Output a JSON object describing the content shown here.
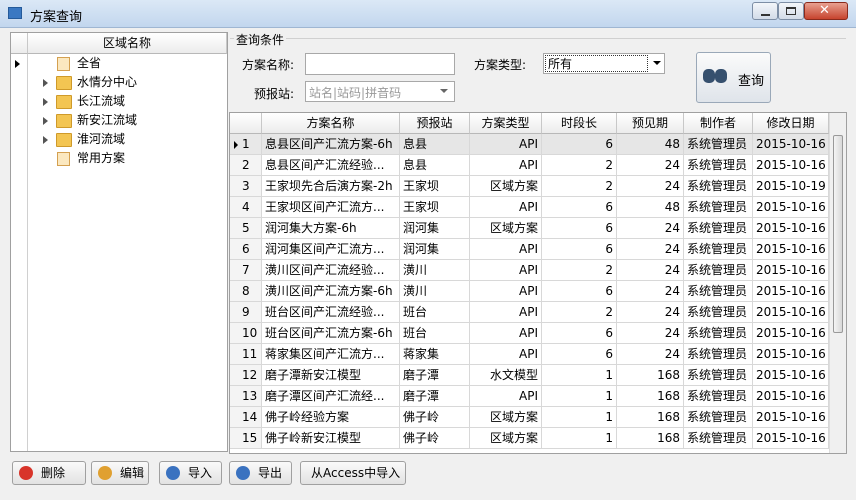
{
  "window": {
    "title": "方案查询"
  },
  "tree": {
    "header": "区域名称",
    "nodes": [
      "全省",
      "水情分中心",
      "长江流域",
      "新安江流域",
      "淮河流域",
      "常用方案"
    ]
  },
  "query": {
    "group_title": "查询条件",
    "name_label": "方案名称:",
    "type_label": "方案类型:",
    "type_value": "所有",
    "station_label": "预报站:",
    "station_placeholder": "站名|站码|拼音码",
    "search_button": "查询"
  },
  "table": {
    "columns": [
      "方案名称",
      "预报站",
      "方案类型",
      "时段长",
      "预见期",
      "制作者",
      "修改日期"
    ],
    "rows": [
      [
        1,
        "息县区间产汇流方案-6h",
        "息县",
        "API",
        6,
        48,
        "系统管理员",
        "2015-10-16"
      ],
      [
        2,
        "息县区间产汇流经验...",
        "息县",
        "API",
        2,
        24,
        "系统管理员",
        "2015-10-16"
      ],
      [
        3,
        "王家坝先合后演方案-2h",
        "王家坝",
        "区域方案",
        2,
        24,
        "系统管理员",
        "2015-10-19"
      ],
      [
        4,
        "王家坝区间产汇流方...",
        "王家坝",
        "API",
        6,
        48,
        "系统管理员",
        "2015-10-16"
      ],
      [
        5,
        "润河集大方案-6h",
        "润河集",
        "区域方案",
        6,
        24,
        "系统管理员",
        "2015-10-16"
      ],
      [
        6,
        "润河集区间产汇流方...",
        "润河集",
        "API",
        6,
        24,
        "系统管理员",
        "2015-10-16"
      ],
      [
        7,
        "潢川区间产汇流经验...",
        "潢川",
        "API",
        2,
        24,
        "系统管理员",
        "2015-10-16"
      ],
      [
        8,
        "潢川区间产汇流方案-6h",
        "潢川",
        "API",
        6,
        24,
        "系统管理员",
        "2015-10-16"
      ],
      [
        9,
        "班台区间产汇流经验...",
        "班台",
        "API",
        2,
        24,
        "系统管理员",
        "2015-10-16"
      ],
      [
        10,
        "班台区间产汇流方案-6h",
        "班台",
        "API",
        6,
        24,
        "系统管理员",
        "2015-10-16"
      ],
      [
        11,
        "蒋家集区间产汇流方...",
        "蒋家集",
        "API",
        6,
        24,
        "系统管理员",
        "2015-10-16"
      ],
      [
        12,
        "磨子潭新安江模型",
        "磨子潭",
        "水文模型",
        1,
        168,
        "系统管理员",
        "2015-10-16"
      ],
      [
        13,
        "磨子潭区间产汇流经...",
        "磨子潭",
        "API",
        1,
        168,
        "系统管理员",
        "2015-10-16"
      ],
      [
        14,
        "佛子岭经验方案",
        "佛子岭",
        "区域方案",
        1,
        168,
        "系统管理员",
        "2015-10-16"
      ],
      [
        15,
        "佛子岭新安江模型",
        "佛子岭",
        "区域方案",
        1,
        168,
        "系统管理员",
        "2015-10-16"
      ]
    ]
  },
  "buttons": [
    "删除",
    "编辑",
    "导入",
    "导出",
    "从Access中导入"
  ]
}
